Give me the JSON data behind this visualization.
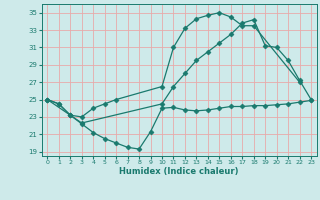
{
  "line1_x": [
    0,
    1,
    2,
    3,
    4,
    5,
    6,
    10,
    11,
    12,
    13,
    14,
    15,
    16,
    17,
    18,
    22
  ],
  "line1_y": [
    25.0,
    24.5,
    23.2,
    23.0,
    24.0,
    24.5,
    25.0,
    26.5,
    31.0,
    33.2,
    34.3,
    34.7,
    35.0,
    34.5,
    33.5,
    33.5,
    27.0
  ],
  "line2_x": [
    0,
    1,
    2,
    3,
    10,
    11,
    12,
    13,
    14,
    15,
    16,
    17,
    18,
    19,
    20,
    21,
    22,
    23
  ],
  "line2_y": [
    25.0,
    24.5,
    23.2,
    22.3,
    24.5,
    26.5,
    28.0,
    29.5,
    30.5,
    31.5,
    32.5,
    33.8,
    34.2,
    31.2,
    31.0,
    29.5,
    27.2,
    25.0
  ],
  "line3_x": [
    0,
    2,
    3,
    4,
    5,
    6,
    7,
    8,
    9,
    10,
    11,
    12,
    13,
    14,
    15,
    16,
    17,
    18,
    19,
    20,
    21,
    22,
    23
  ],
  "line3_y": [
    25.0,
    23.2,
    22.2,
    21.2,
    20.5,
    20.0,
    19.5,
    19.3,
    21.3,
    24.0,
    24.1,
    23.8,
    23.7,
    23.8,
    24.0,
    24.2,
    24.2,
    24.3,
    24.3,
    24.4,
    24.5,
    24.7,
    24.9
  ],
  "line_color": "#1a7a6e",
  "bg_color": "#ceeaea",
  "grid_color": "#e8aaaa",
  "xlabel": "Humidex (Indice chaleur)",
  "xlim": [
    -0.5,
    23.5
  ],
  "ylim": [
    18.5,
    36.0
  ],
  "yticks": [
    19,
    21,
    23,
    25,
    27,
    29,
    31,
    33,
    35
  ],
  "xticks": [
    0,
    1,
    2,
    3,
    4,
    5,
    6,
    7,
    8,
    9,
    10,
    11,
    12,
    13,
    14,
    15,
    16,
    17,
    18,
    19,
    20,
    21,
    22,
    23
  ],
  "marker": "D",
  "markersize": 2.5,
  "linewidth": 0.9
}
